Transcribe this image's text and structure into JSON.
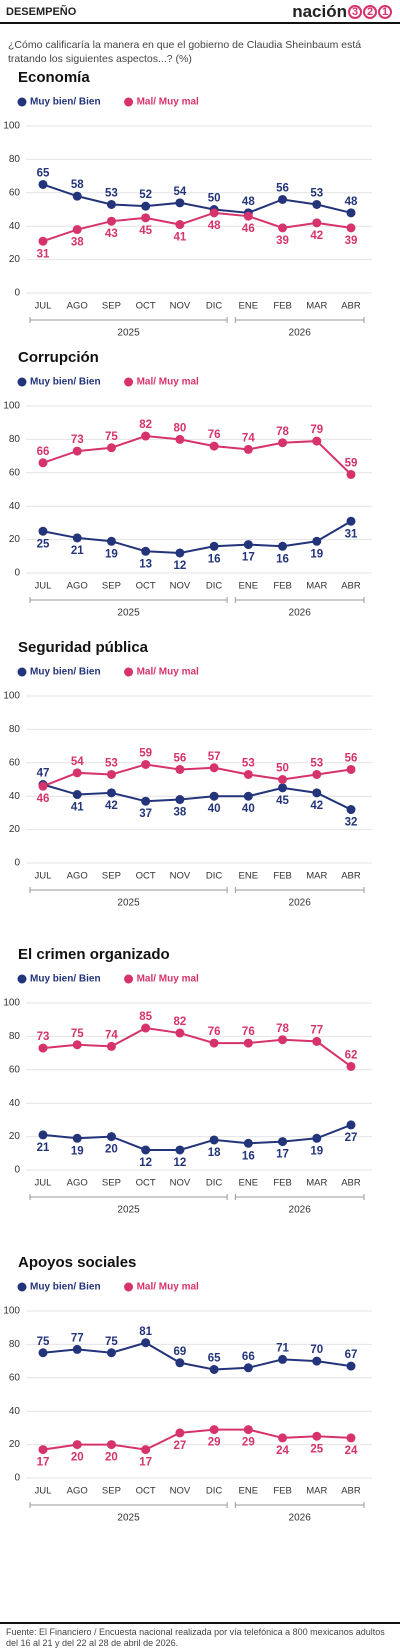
{
  "header": {
    "section": "DESEMPEÑO",
    "brand": "nación",
    "brand_digits": [
      "3",
      "2",
      "1"
    ]
  },
  "question": "¿Cómo calificaría la manera en que el gobierno de Claudia Sheinbaum está tratando los siguientes aspectos...?  (%)",
  "chart_data": [
    {
      "type": "line",
      "title": "Economía",
      "categories": [
        "JUL",
        "AGO",
        "SEP",
        "OCT",
        "NOV",
        "DIC",
        "ENE",
        "FEB",
        "MAR",
        "ABR"
      ],
      "category_groups": [
        {
          "label": "2025",
          "range": [
            0,
            5
          ]
        },
        {
          "label": "2026",
          "range": [
            6,
            9
          ]
        }
      ],
      "ylim": [
        0,
        100
      ],
      "yticks": [
        0,
        20,
        40,
        60,
        80,
        100
      ],
      "grid": true,
      "series": [
        {
          "name": "Muy bien/ Bien",
          "color": "#23347a",
          "values": [
            65,
            58,
            53,
            52,
            54,
            50,
            48,
            56,
            53,
            48
          ]
        },
        {
          "name": "Mal/ Muy mal",
          "color": "#d6336c",
          "values": [
            31,
            38,
            43,
            45,
            41,
            48,
            46,
            39,
            42,
            39
          ]
        }
      ]
    },
    {
      "type": "line",
      "title": "Corrupción",
      "categories": [
        "JUL",
        "AGO",
        "SEP",
        "OCT",
        "NOV",
        "DIC",
        "ENE",
        "FEB",
        "MAR",
        "ABR"
      ],
      "category_groups": [
        {
          "label": "2025",
          "range": [
            0,
            5
          ]
        },
        {
          "label": "2026",
          "range": [
            6,
            9
          ]
        }
      ],
      "ylim": [
        0,
        100
      ],
      "yticks": [
        0,
        20,
        40,
        60,
        80,
        100
      ],
      "grid": true,
      "series": [
        {
          "name": "Muy bien/ Bien",
          "color": "#23347a",
          "values": [
            25,
            21,
            19,
            13,
            12,
            16,
            17,
            16,
            19,
            31
          ]
        },
        {
          "name": "Mal/ Muy mal",
          "color": "#d6336c",
          "values": [
            66,
            73,
            75,
            82,
            80,
            76,
            74,
            78,
            79,
            59
          ]
        }
      ]
    },
    {
      "type": "line",
      "title": "Seguridad pública",
      "categories": [
        "JUL",
        "AGO",
        "SEP",
        "OCT",
        "NOV",
        "DIC",
        "ENE",
        "FEB",
        "MAR",
        "ABR"
      ],
      "category_groups": [
        {
          "label": "2025",
          "range": [
            0,
            5
          ]
        },
        {
          "label": "2026",
          "range": [
            6,
            9
          ]
        }
      ],
      "ylim": [
        0,
        100
      ],
      "yticks": [
        0,
        20,
        40,
        60,
        80,
        100
      ],
      "grid": true,
      "series": [
        {
          "name": "Muy bien/ Bien",
          "color": "#23347a",
          "values": [
            47,
            41,
            42,
            37,
            38,
            40,
            40,
            45,
            42,
            32
          ]
        },
        {
          "name": "Mal/ Muy mal",
          "color": "#d6336c",
          "values": [
            46,
            54,
            53,
            59,
            56,
            57,
            53,
            50,
            53,
            56
          ]
        }
      ]
    },
    {
      "type": "line",
      "title": "El crimen organizado",
      "categories": [
        "JUL",
        "AGO",
        "SEP",
        "OCT",
        "NOV",
        "DIC",
        "ENE",
        "FEB",
        "MAR",
        "ABR"
      ],
      "category_groups": [
        {
          "label": "2025",
          "range": [
            0,
            5
          ]
        },
        {
          "label": "2026",
          "range": [
            6,
            9
          ]
        }
      ],
      "ylim": [
        0,
        100
      ],
      "yticks": [
        0,
        20,
        40,
        60,
        80,
        100
      ],
      "grid": true,
      "series": [
        {
          "name": "Muy bien/ Bien",
          "color": "#23347a",
          "values": [
            21,
            19,
            20,
            12,
            12,
            18,
            16,
            17,
            19,
            27
          ]
        },
        {
          "name": "Mal/ Muy mal",
          "color": "#d6336c",
          "values": [
            73,
            75,
            74,
            85,
            82,
            76,
            76,
            78,
            77,
            62
          ]
        }
      ]
    },
    {
      "type": "line",
      "title": "Apoyos sociales",
      "categories": [
        "JUL",
        "AGO",
        "SEP",
        "OCT",
        "NOV",
        "DIC",
        "ENE",
        "FEB",
        "MAR",
        "ABR"
      ],
      "category_groups": [
        {
          "label": "2025",
          "range": [
            0,
            5
          ]
        },
        {
          "label": "2026",
          "range": [
            6,
            9
          ]
        }
      ],
      "ylim": [
        0,
        100
      ],
      "yticks": [
        0,
        20,
        40,
        60,
        80,
        100
      ],
      "grid": true,
      "series": [
        {
          "name": "Muy bien/ Bien",
          "color": "#23347a",
          "values": [
            75,
            77,
            75,
            81,
            69,
            65,
            66,
            71,
            70,
            67
          ]
        },
        {
          "name": "Mal/ Muy mal",
          "color": "#d6336c",
          "values": [
            17,
            20,
            20,
            17,
            27,
            29,
            29,
            24,
            25,
            24
          ]
        }
      ]
    }
  ],
  "source": "Fuente: El Financiero /  Encuesta nacional realizada por vía telefónica a 800 mexicanos adultos del 16 al 21  y del 22 al 28 de abril de 2026."
}
